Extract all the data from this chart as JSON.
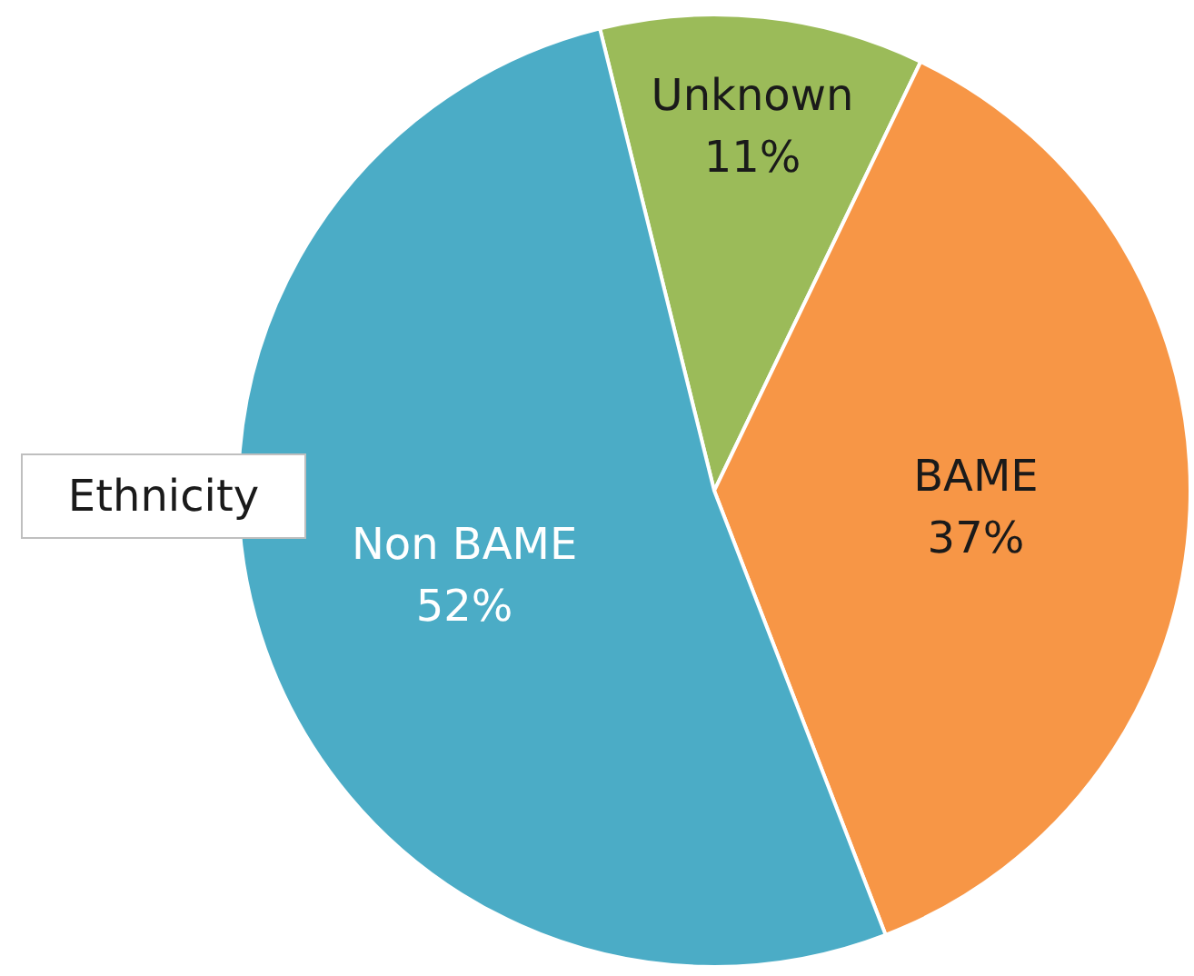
{
  "chart_data": {
    "type": "pie",
    "title": "Ethnicity",
    "categories": [
      "Unknown",
      "BAME",
      "Non BAME"
    ],
    "values": [
      11,
      37,
      52
    ],
    "colors": [
      "#9bbb59",
      "#f79646",
      "#4bacc6"
    ],
    "value_labels": [
      "11%",
      "37%",
      "52%"
    ]
  }
}
